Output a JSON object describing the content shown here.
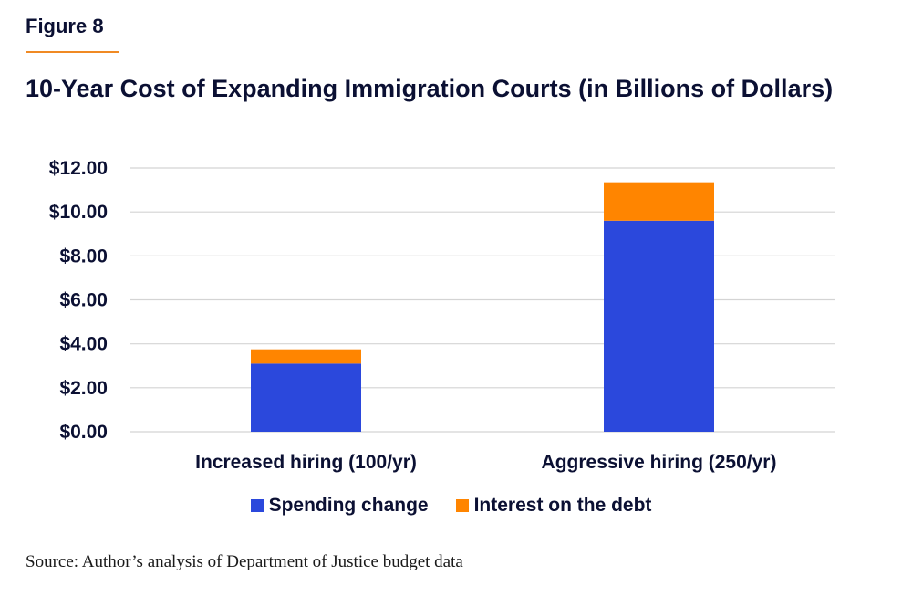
{
  "figure_label": "Figure 8",
  "source": "Source: Author’s analysis of Department of Justice budget data",
  "colors": {
    "text": "#0b1033",
    "accent_rule": "#f08a24",
    "grid": "#d4d4d4",
    "spending": "#2b48dc",
    "interest": "#ff8500"
  },
  "chart_data": {
    "type": "bar",
    "stacked": true,
    "title": "10-Year Cost of Expanding Immigration Courts (in Billions of Dollars)",
    "xlabel": "",
    "ylabel": "",
    "categories": [
      "Increased hiring (100/yr)",
      "Aggressive hiring (250/yr)"
    ],
    "series": [
      {
        "name": "Spending change",
        "color": "#2b48dc",
        "values": [
          3.1,
          9.6
        ]
      },
      {
        "name": "Interest on the debt",
        "color": "#ff8500",
        "values": [
          0.65,
          1.75
        ]
      }
    ],
    "y_ticks": [
      "$0.00",
      "$2.00",
      "$4.00",
      "$6.00",
      "$8.00",
      "$10.00",
      "$12.00"
    ],
    "ylim": [
      0,
      12
    ],
    "grid": true,
    "legend_position": "bottom"
  }
}
